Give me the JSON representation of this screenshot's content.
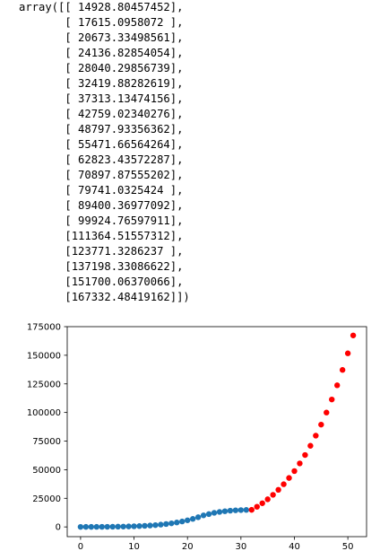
{
  "output_cell": {
    "lines": [
      "array([[ 14928.80457452],",
      "       [ 17615.0958072 ],",
      "       [ 20673.33498561],",
      "       [ 24136.82854054],",
      "       [ 28040.29856739],",
      "       [ 32419.88282619],",
      "       [ 37313.13474156],",
      "       [ 42759.02340276],",
      "       [ 48797.93356362],",
      "       [ 55471.66564264],",
      "       [ 62823.43572287],",
      "       [ 70897.87555202],",
      "       [ 79741.0325424 ],",
      "       [ 89400.36977092],",
      "       [ 99924.76597911],",
      "       [111364.51557312],",
      "       [123771.3286237 ],",
      "       [137198.33086622],",
      "       [151700.06370066],",
      "       [167332.48419162]])"
    ]
  },
  "chart_data": {
    "type": "scatter",
    "title": "",
    "xlabel": "",
    "ylabel": "",
    "xlim": [
      -2.5,
      53.5
    ],
    "ylim": [
      -8500,
      175000
    ],
    "xticks": [
      0,
      10,
      20,
      30,
      40,
      50
    ],
    "yticks": [
      0,
      25000,
      50000,
      75000,
      100000,
      125000,
      150000,
      175000
    ],
    "grid": false,
    "colors": {
      "series_1": "#1f77b4",
      "series_2": "#ff0000"
    },
    "series": [
      {
        "x": [
          0,
          1,
          2,
          3,
          4,
          5,
          6,
          7,
          8,
          9,
          10,
          11,
          12,
          13,
          14,
          15,
          16,
          17,
          18,
          19,
          20,
          21,
          22,
          23,
          24,
          25,
          26,
          27,
          28,
          29,
          30,
          31
        ],
        "y": [
          15,
          20,
          30,
          50,
          75,
          110,
          160,
          225,
          310,
          420,
          560,
          740,
          960,
          1240,
          1580,
          2010,
          2520,
          3130,
          3870,
          4750,
          5790,
          7010,
          8450,
          10100,
          11200,
          12300,
          13100,
          13700,
          14200,
          14500,
          14700,
          14850
        ]
      },
      {
        "x": [
          32,
          33,
          34,
          35,
          36,
          37,
          38,
          39,
          40,
          41,
          42,
          43,
          44,
          45,
          46,
          47,
          48,
          49,
          50,
          51
        ],
        "y": [
          14928.80457452,
          17615.0958072,
          20673.33498561,
          24136.82854054,
          28040.29856739,
          32419.88282619,
          37313.13474156,
          42759.02340276,
          48797.93356362,
          55471.66564264,
          62823.43572287,
          70897.87555202,
          79741.0325424,
          89400.36977092,
          99924.76597911,
          111364.51557312,
          123771.3286237,
          137198.33086622,
          151700.06370066,
          167332.48419162
        ]
      }
    ]
  }
}
